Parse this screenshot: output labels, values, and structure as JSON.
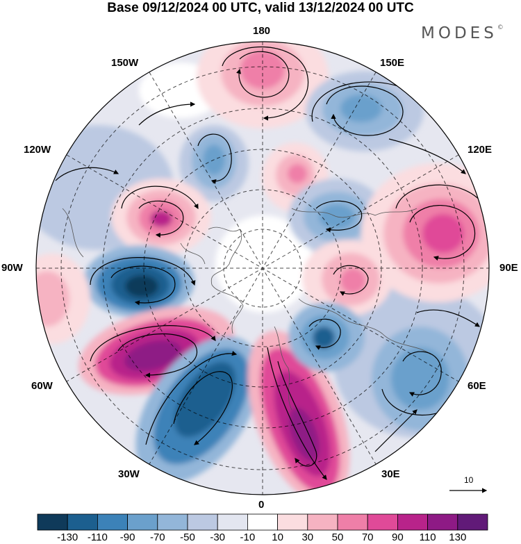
{
  "title": "Base 09/12/2024 00 UTC, valid 13/12/2024 00 UTC",
  "brand": "MODES",
  "brand_mark": "©",
  "longitude_labels": {
    "lon_180": "180",
    "lon_150W": "150W",
    "lon_150E": "150E",
    "lon_120W": "120W",
    "lon_120E": "120E",
    "lon_90W": "90W",
    "lon_90E": "90E",
    "lon_60W": "60W",
    "lon_60E": "60E",
    "lon_30W": "30W",
    "lon_30E": "30E",
    "lon_0": "0"
  },
  "vector_scale": {
    "label": "10"
  },
  "colorbar": {
    "colors": [
      "#0f3a5a",
      "#1c5f8f",
      "#3c82b8",
      "#6ba0cc",
      "#93b6d9",
      "#bcc9e2",
      "#e3e6f0",
      "#ffffff",
      "#fbdde0",
      "#f6b3c2",
      "#ef7fa8",
      "#e04a98",
      "#b8238a",
      "#8e1a85",
      "#611a78"
    ],
    "ticks": [
      "-130",
      "-110",
      "-90",
      "-70",
      "-50",
      "-30",
      "-10",
      "10",
      "30",
      "50",
      "70",
      "90",
      "110",
      "130"
    ]
  },
  "anomaly_centers": [
    {
      "name": "high-north-180",
      "value": 60
    },
    {
      "name": "low-150E",
      "value": -70
    },
    {
      "name": "low-135W",
      "value": -60
    },
    {
      "name": "high-near-pole-160E",
      "value": 60
    },
    {
      "name": "high-110W",
      "value": 90
    },
    {
      "name": "low-100E",
      "value": -70
    },
    {
      "name": "high-115E",
      "value": 90
    },
    {
      "name": "low-85W",
      "value": -130
    },
    {
      "name": "high-85E",
      "value": 70
    },
    {
      "name": "high-60W",
      "value": 110
    },
    {
      "name": "low-45W",
      "value": -110
    },
    {
      "name": "high-20E",
      "value": 110
    },
    {
      "name": "low-45E",
      "value": -90
    },
    {
      "name": "low-65E",
      "value": -70
    },
    {
      "name": "high-100W-edge",
      "value": 50
    }
  ]
}
